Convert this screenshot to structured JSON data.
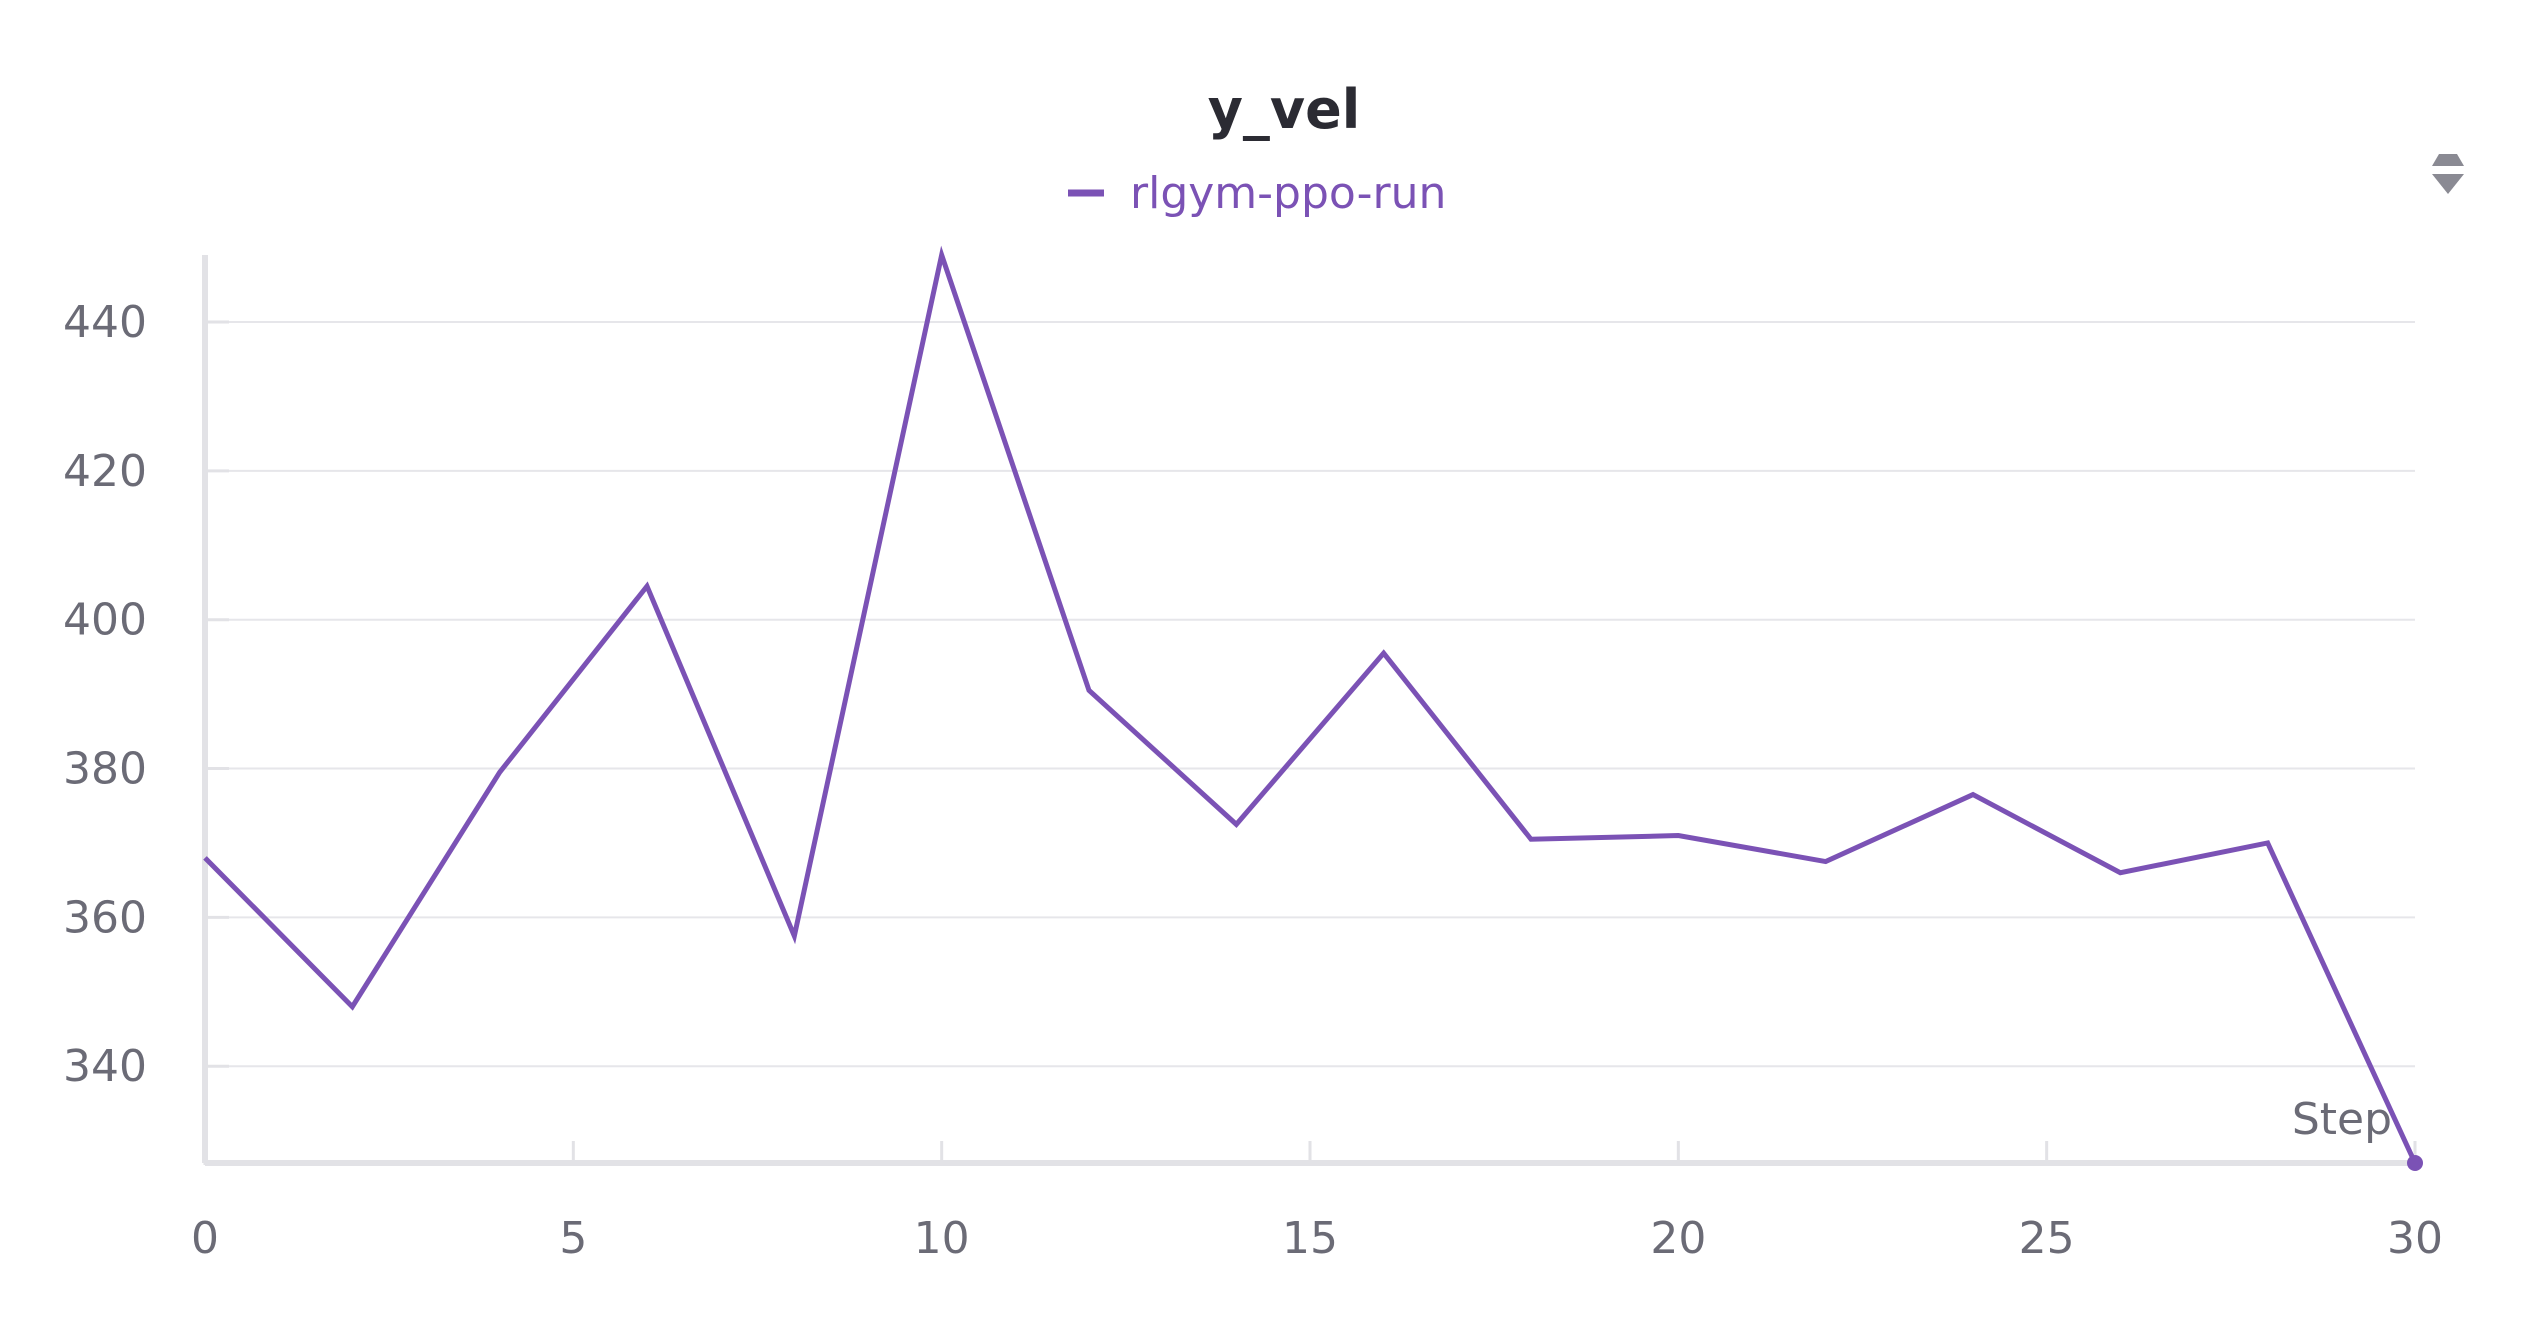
{
  "chart_data": {
    "type": "line",
    "title": "y_vel",
    "xlabel": "Step",
    "ylabel": "",
    "xlim": [
      0,
      30
    ],
    "ylim": [
      327,
      449
    ],
    "x_ticks": [
      0,
      5,
      10,
      15,
      20,
      25,
      30
    ],
    "y_ticks": [
      340,
      360,
      380,
      400,
      420,
      440
    ],
    "grid": true,
    "legend_position": "top-center",
    "series": [
      {
        "name": "rlgym-ppo-run",
        "color": "#7b52b5",
        "x": [
          0,
          2,
          4,
          6,
          8,
          10,
          12,
          14,
          16,
          18,
          20,
          22,
          24,
          26,
          28,
          30
        ],
        "y": [
          368,
          348,
          379.5,
          404.5,
          357.5,
          449,
          390.5,
          372.5,
          395.5,
          370.5,
          371,
          367.5,
          376.5,
          366,
          370,
          327
        ]
      }
    ]
  },
  "controls": {
    "legend_toggle_icon": "chevron-up-down-icon"
  }
}
